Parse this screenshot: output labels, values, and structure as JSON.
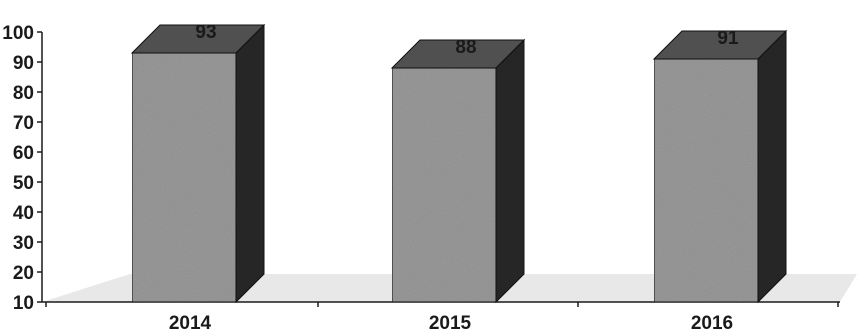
{
  "chart_data": {
    "type": "bar",
    "style": "3d-column",
    "categories": [
      "2014",
      "2015",
      "2016"
    ],
    "values": [
      93,
      88,
      91
    ],
    "data_labels": [
      "93",
      "88",
      "91"
    ],
    "title": "",
    "xlabel": "",
    "ylabel": "",
    "ylim": [
      10,
      100
    ],
    "yticks": [
      "10",
      "20",
      "30",
      "40",
      "50",
      "60",
      "70",
      "80",
      "90",
      "100"
    ],
    "grid": false,
    "colors": {
      "bar_front": "#9a9a9a",
      "bar_top": "#505050",
      "bar_side": "#262626",
      "floor": "#d6d6d6",
      "axis": "#1a1a1a"
    }
  }
}
